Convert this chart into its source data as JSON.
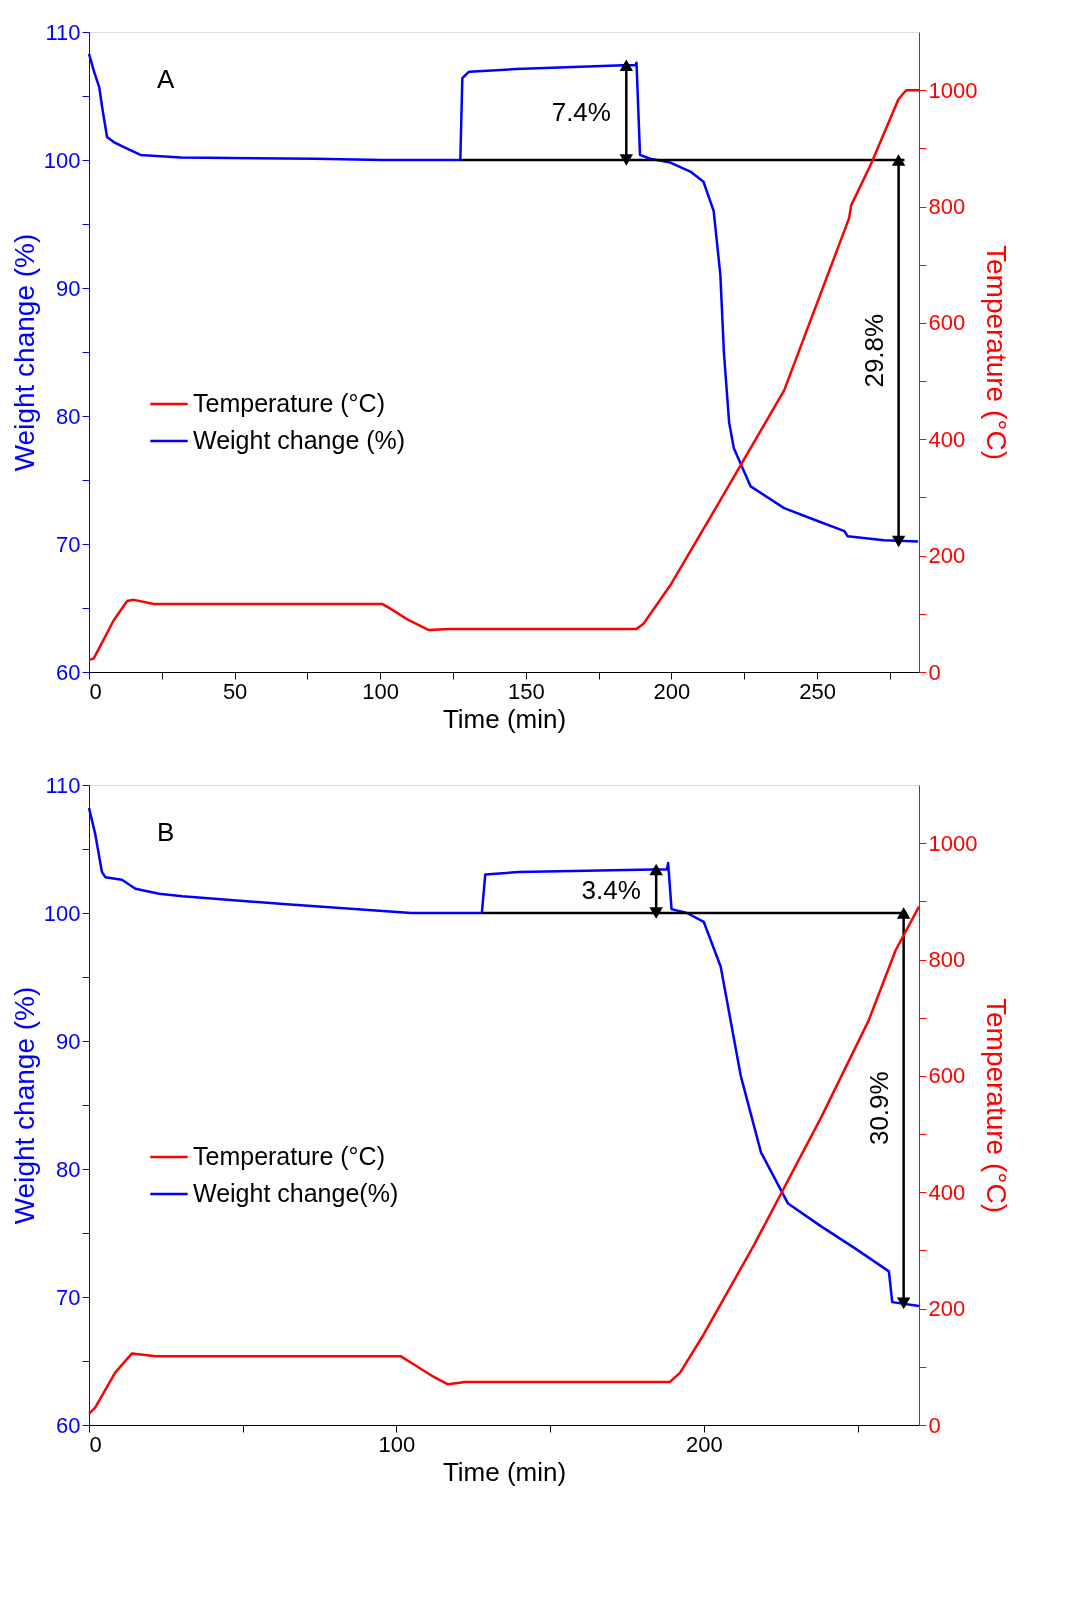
{
  "chart_data": [
    {
      "type": "line",
      "xlabel": "Time (min)",
      "ylabel": "Weight change (%)",
      "y2label": "Temperature (°C)",
      "legend": "left",
      "xlim": [
        0,
        285
      ],
      "xticks": [
        0,
        {
          "value": 25,
          "label": null
        },
        50,
        {
          "value": 75,
          "label": null
        },
        100,
        {
          "value": 125,
          "label": null
        },
        150,
        {
          "value": 175,
          "label": null
        },
        200,
        {
          "value": 225,
          "label": null
        },
        250,
        {
          "value": 275,
          "label": null
        }
      ],
      "ylim": [
        60,
        110
      ],
      "yticks": [
        60,
        {
          "value": 65,
          "label": null
        },
        70,
        {
          "value": 75,
          "label": null
        },
        80,
        {
          "value": 85,
          "label": null
        },
        90,
        {
          "value": 95,
          "label": null
        },
        100,
        {
          "value": 105,
          "label": null
        },
        110
      ],
      "y2lim": [
        0,
        1100
      ],
      "y2ticks": [
        0,
        {
          "value": 100,
          "label": null
        },
        200,
        {
          "value": 300,
          "label": null
        },
        400,
        {
          "value": 500,
          "label": null
        },
        600,
        {
          "value": 700,
          "label": null
        },
        800,
        {
          "value": 900,
          "label": null
        },
        1000
      ],
      "series": [
        {
          "name": "Temperature (°C)",
          "color": "#ff0000",
          "axis": "y2",
          "x": [
            0,
            1.6,
            3.9,
            8.5,
            13.1,
            15.4,
            22.3,
            31.5,
            100.6,
            102.8,
            109.8,
            116.7,
            123.6,
            188,
            190.4,
            199.6,
            215.7,
            238.7,
            261,
            261.7,
            268.6,
            277.9,
            280.6,
            285
          ],
          "values": [
            21,
            23,
            45,
            89,
            122,
            124,
            117,
            117,
            117,
            111,
            89,
            72,
            74,
            74,
            83,
            149,
            286,
            484,
            780,
            802,
            874,
            984,
            1000,
            1000
          ]
        },
        {
          "name": "Weight change (%)",
          "color": "#0000ff",
          "x": [
            0,
            1.6,
            3.5,
            4.6,
            6.2,
            8.5,
            12,
            17.7,
            31.5,
            77.6,
            100.6,
            127.5,
            128.2,
            130.5,
            146.6,
            183.5,
            187.6,
            188,
            189.2,
            192.7,
            199.6,
            206.5,
            211,
            214.5,
            216.8,
            218,
            219.8,
            221.4,
            227.2,
            238.7,
            250.2,
            259.4,
            260.5,
            273,
            284.7
          ],
          "values": [
            108.3,
            107,
            105.7,
            104,
            101.8,
            101.4,
            101,
            100.4,
            100.2,
            100.1,
            100,
            100,
            106.4,
            106.9,
            107.1,
            107.4,
            107.4,
            107.6,
            100.4,
            100.1,
            99.8,
            99.1,
            98.3,
            96,
            91,
            85,
            79.5,
            77.5,
            74.5,
            72.8,
            71.8,
            71,
            70.6,
            70.3,
            70.2
          ]
        },
        {
          "color": "#000000",
          "x": [
            127.5,
            280
          ],
          "values": [
            100,
            100
          ]
        },
        {
          "color": "#000000",
          "marker": "triangle",
          "x": [
            184.5,
            184.5
          ],
          "values": [
            100,
            107.4
          ]
        },
        {
          "color": "#000000",
          "marker": "triangle",
          "x": [
            278,
            278
          ],
          "values": [
            100,
            70.2
          ]
        }
      ],
      "annotations": [
        "A",
        "7.4%",
        "29.8%"
      ]
    },
    {
      "type": "line",
      "xlabel": "Time (min)",
      "ylabel": "Weight change (%)",
      "y2label": "Temperature (°C)",
      "legend": "left",
      "xlim": [
        0,
        270
      ],
      "xticks": [
        0,
        {
          "value": 50,
          "label": null
        },
        100,
        {
          "value": 150,
          "label": null
        },
        200,
        {
          "value": 250,
          "label": null
        }
      ],
      "ylim": [
        60,
        110
      ],
      "yticks": [
        60,
        {
          "value": 65,
          "label": null
        },
        70,
        {
          "value": 75,
          "label": null
        },
        80,
        {
          "value": 85,
          "label": null
        },
        90,
        {
          "value": 95,
          "label": null
        },
        100,
        {
          "value": 105,
          "label": null
        },
        110
      ],
      "y2lim": [
        0,
        1100
      ],
      "y2ticks": [
        0,
        {
          "value": 100,
          "label": null
        },
        200,
        {
          "value": 300,
          "label": null
        },
        400,
        {
          "value": 500,
          "label": null
        },
        600,
        {
          "value": 700,
          "label": null
        },
        800,
        {
          "value": 900,
          "label": null
        },
        1000
      ],
      "series": [
        {
          "name": "Temperature (°C)",
          "color": "#ff0000",
          "axis": "y2",
          "x": [
            0,
            2,
            8.5,
            14,
            21.7,
            30.4,
            101.5,
            104.8,
            111.4,
            116.8,
            122.3,
            189,
            192.3,
            200,
            216.4,
            238.3,
            253.6,
            260,
            262.4,
            270
          ],
          "values": [
            19,
            30,
            90,
            123,
            118,
            118,
            118,
            107,
            85,
            70,
            74,
            74,
            90,
            156,
            310,
            530,
            695,
            783,
            816,
            891
          ]
        },
        {
          "name": "Weight change(%)",
          "color": "#0000ff",
          "x": [
            0,
            2,
            4.2,
            5.3,
            10.7,
            15.1,
            22.8,
            30.4,
            63.2,
            104.8,
            127.8,
            128.9,
            139.8,
            183.6,
            188,
            188.4,
            189.5,
            194.5,
            200,
            205.5,
            212,
            218.6,
            227.4,
            238.3,
            249.2,
            260.2,
            261.3,
            270
          ],
          "values": [
            108.2,
            106.2,
            103.2,
            102.8,
            102.6,
            101.9,
            101.5,
            101.3,
            100.7,
            100,
            100,
            103,
            103.2,
            103.4,
            103.4,
            103.9,
            100.3,
            100,
            99.3,
            95.8,
            87.3,
            81.3,
            77.3,
            75.5,
            73.8,
            72,
            69.6,
            69.3
          ]
        },
        {
          "color": "#000000",
          "x": [
            128,
            266
          ],
          "values": [
            100,
            100
          ]
        },
        {
          "color": "#000000",
          "marker": "triangle",
          "x": [
            184.5,
            184.5
          ],
          "values": [
            100,
            103.4
          ]
        },
        {
          "color": "#000000",
          "marker": "triangle",
          "x": [
            265,
            265
          ],
          "values": [
            100,
            69.5
          ]
        }
      ],
      "annotations": [
        "B",
        "3.4%",
        "30.9%"
      ]
    }
  ]
}
